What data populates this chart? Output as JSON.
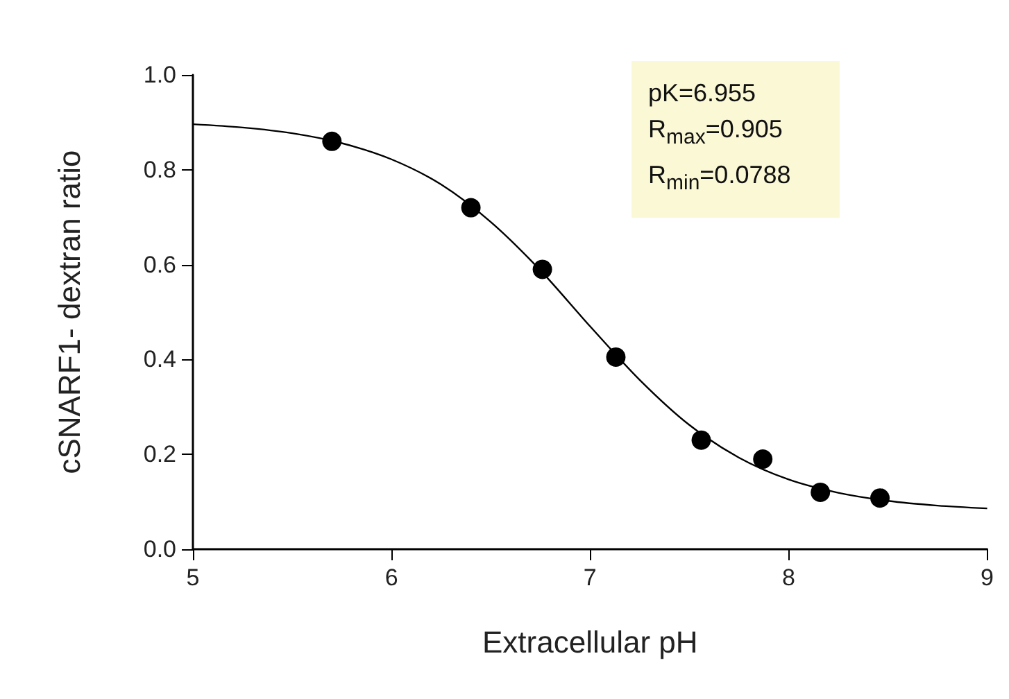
{
  "chart_data": {
    "type": "scatter",
    "xlabel": "Extracellular pH",
    "ylabel": "cSNARF1- dextran ratio",
    "xlim": [
      5,
      9
    ],
    "xticks": [
      5,
      6,
      7,
      8,
      9
    ],
    "ylim": [
      0,
      1
    ],
    "yticks": [
      {
        "value": 0,
        "label": "0.0"
      },
      {
        "value": 0.2,
        "label": "0.2"
      },
      {
        "value": 0.4,
        "label": "0.4"
      },
      {
        "value": 0.6,
        "label": "0.6"
      },
      {
        "value": 0.8,
        "label": "0.8"
      },
      {
        "value": 1,
        "label": "1.0"
      }
    ],
    "grid": false,
    "series": [
      {
        "color": "#000000",
        "marker": "circle",
        "x": [
          5.7,
          6.4,
          6.76,
          7.13,
          7.56,
          7.87,
          8.16,
          8.46
        ],
        "values": [
          0.86,
          0.72,
          0.59,
          0.405,
          0.23,
          0.19,
          0.12,
          0.108
        ]
      },
      {
        "type": "line",
        "color": "#000000",
        "marker": "none",
        "line_style": "solid",
        "x": [
          5,
          5.25,
          5.5,
          5.75,
          6,
          6.25,
          6.5,
          6.75,
          7,
          7.25,
          7.5,
          7.75,
          8,
          8.25,
          8.5,
          8.75,
          9
        ],
        "values": [
          0.896,
          0.889,
          0.877,
          0.856,
          0.822,
          0.769,
          0.69,
          0.588,
          0.47,
          0.357,
          0.262,
          0.193,
          0.147,
          0.119,
          0.102,
          0.092,
          0.086
        ]
      }
    ],
    "annotations": [
      "pK=6.955",
      "R$_{max}$=0.905",
      "R$_{min}$=0.0788"
    ]
  }
}
